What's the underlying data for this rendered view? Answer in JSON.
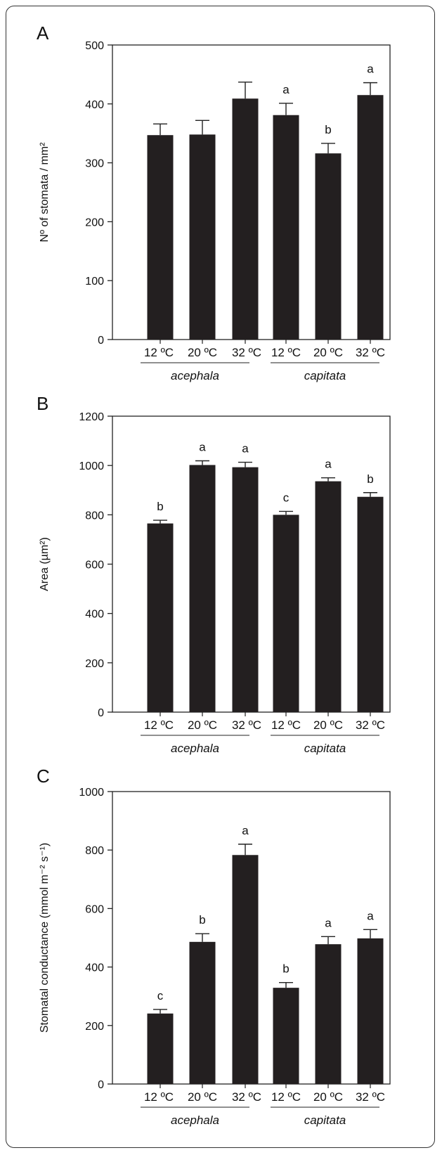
{
  "chart_data": [
    {
      "type": "bar",
      "panel": "A",
      "categories": [
        "12 ºC",
        "20 ºC",
        "32 ºC",
        "12 ºC",
        "20 ºC",
        "32 ºC"
      ],
      "groups": [
        {
          "name": "acephala",
          "indices": [
            0,
            1,
            2
          ]
        },
        {
          "name": "capitata",
          "indices": [
            3,
            4,
            5
          ]
        }
      ],
      "values": [
        347,
        348,
        409,
        381,
        316,
        415
      ],
      "errors": [
        19,
        24,
        28,
        20,
        17,
        21
      ],
      "letters": [
        "",
        "",
        "",
        "a",
        "b",
        "a"
      ],
      "ylabel": "Nº of stomata / mm²",
      "ylim": [
        0,
        500
      ],
      "yticks": [
        0,
        100,
        200,
        300,
        400,
        500
      ],
      "grid": false,
      "bar_color": "#231f20"
    },
    {
      "type": "bar",
      "panel": "B",
      "categories": [
        "12 ºC",
        "20 ºC",
        "32 ºC",
        "12 ºC",
        "20 ºC",
        "32 ºC"
      ],
      "groups": [
        {
          "name": "acephala",
          "indices": [
            0,
            1,
            2
          ]
        },
        {
          "name": "capitata",
          "indices": [
            3,
            4,
            5
          ]
        }
      ],
      "values": [
        765,
        1002,
        993,
        800,
        936,
        873
      ],
      "errors": [
        13,
        17,
        20,
        14,
        14,
        17
      ],
      "letters": [
        "b",
        "a",
        "a",
        "c",
        "a",
        "b"
      ],
      "ylabel": "Area (µm²)",
      "ylim": [
        0,
        1200
      ],
      "yticks": [
        0,
        200,
        400,
        600,
        800,
        1000,
        1200
      ],
      "grid": false,
      "bar_color": "#231f20"
    },
    {
      "type": "bar",
      "panel": "C",
      "categories": [
        "12 ºC",
        "20 ºC",
        "32 ºC",
        "12 ºC",
        "20 ºC",
        "32 ºC"
      ],
      "groups": [
        {
          "name": "acephala",
          "indices": [
            0,
            1,
            2
          ]
        },
        {
          "name": "capitata",
          "indices": [
            3,
            4,
            5
          ]
        }
      ],
      "values": [
        241,
        486,
        783,
        329,
        478,
        498
      ],
      "errors": [
        14,
        28,
        37,
        18,
        26,
        30
      ],
      "letters": [
        "c",
        "b",
        "a",
        "b",
        "a",
        "a"
      ],
      "ylabel": "Stomatal conductance (mmol m⁻² s⁻¹)",
      "ylim": [
        0,
        1000
      ],
      "yticks": [
        0,
        200,
        400,
        600,
        800,
        1000
      ],
      "grid": false,
      "bar_color": "#231f20"
    }
  ]
}
